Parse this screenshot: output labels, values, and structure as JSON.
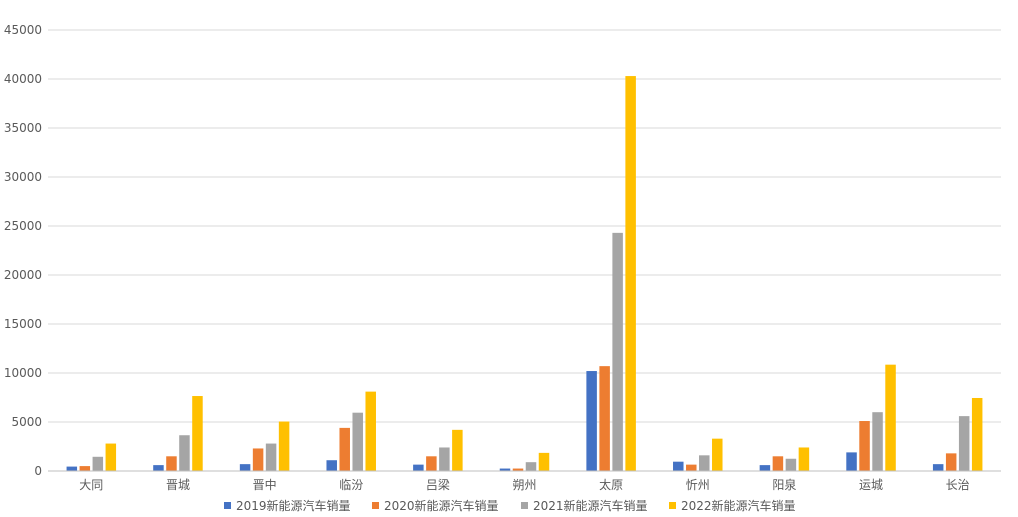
{
  "chart_data": {
    "type": "bar",
    "title": "",
    "xlabel": "",
    "ylabel": "",
    "ylim": [
      0,
      45000
    ],
    "yticks": [
      0,
      5000,
      10000,
      15000,
      20000,
      25000,
      30000,
      35000,
      40000,
      45000
    ],
    "grid": true,
    "legend_position": "bottom",
    "categories": [
      "大同",
      "晋城",
      "晋中",
      "临汾",
      "吕梁",
      "朔州",
      "太原",
      "忻州",
      "阳泉",
      "运城",
      "长治"
    ],
    "series": [
      {
        "name": "2019新能源汽车销量",
        "color": "#4472C4",
        "values": [
          450,
          600,
          700,
          1100,
          650,
          250,
          10200,
          950,
          600,
          1900,
          700
        ]
      },
      {
        "name": "2020新能源汽车销量",
        "color": "#ED7D31",
        "values": [
          500,
          1500,
          2300,
          4400,
          1500,
          250,
          10700,
          650,
          1500,
          5100,
          1800
        ]
      },
      {
        "name": "2021新能源汽车销量",
        "color": "#A5A5A5",
        "values": [
          1450,
          3650,
          2800,
          5950,
          2400,
          900,
          24300,
          1600,
          1250,
          6000,
          5600
        ]
      },
      {
        "name": "2022新能源汽车销量",
        "color": "#FFC000",
        "values": [
          2800,
          7650,
          5050,
          8100,
          4200,
          1850,
          40300,
          3300,
          2400,
          10850,
          7450
        ]
      }
    ]
  }
}
